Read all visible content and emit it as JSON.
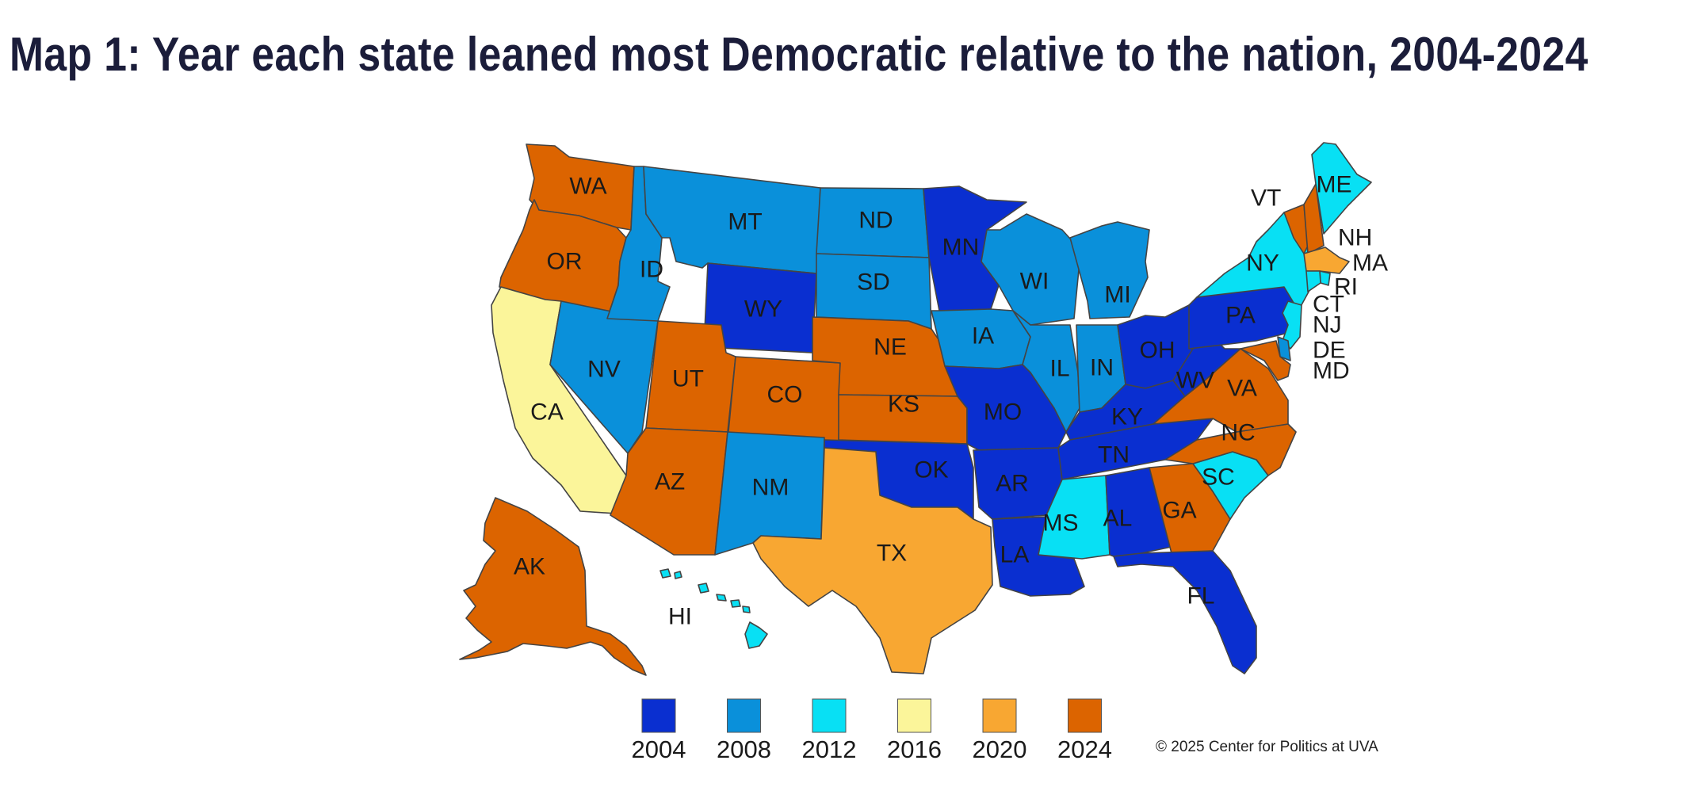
{
  "title": "Map 1: Year each state leaned most Democratic relative to the nation, 2004-2024",
  "credit": "© 2025 Center for Politics at UVA",
  "legend": [
    {
      "year": "2004",
      "color": "#0a2fd0"
    },
    {
      "year": "2008",
      "color": "#0a90da"
    },
    {
      "year": "2012",
      "color": "#08e0f4"
    },
    {
      "year": "2016",
      "color": "#fbf59a"
    },
    {
      "year": "2020",
      "color": "#f8a732"
    },
    {
      "year": "2024",
      "color": "#dc6400"
    }
  ],
  "states": [
    {
      "abbr": "WA",
      "year": "2024"
    },
    {
      "abbr": "OR",
      "year": "2024"
    },
    {
      "abbr": "CA",
      "year": "2016"
    },
    {
      "abbr": "NV",
      "year": "2008"
    },
    {
      "abbr": "ID",
      "year": "2008"
    },
    {
      "abbr": "MT",
      "year": "2008"
    },
    {
      "abbr": "WY",
      "year": "2004"
    },
    {
      "abbr": "UT",
      "year": "2024"
    },
    {
      "abbr": "AZ",
      "year": "2024"
    },
    {
      "abbr": "CO",
      "year": "2024"
    },
    {
      "abbr": "NM",
      "year": "2008"
    },
    {
      "abbr": "ND",
      "year": "2008"
    },
    {
      "abbr": "SD",
      "year": "2008"
    },
    {
      "abbr": "NE",
      "year": "2024"
    },
    {
      "abbr": "KS",
      "year": "2024"
    },
    {
      "abbr": "OK",
      "year": "2004"
    },
    {
      "abbr": "TX",
      "year": "2020"
    },
    {
      "abbr": "MN",
      "year": "2004"
    },
    {
      "abbr": "IA",
      "year": "2008"
    },
    {
      "abbr": "MO",
      "year": "2004"
    },
    {
      "abbr": "AR",
      "year": "2004"
    },
    {
      "abbr": "LA",
      "year": "2004"
    },
    {
      "abbr": "WI",
      "year": "2008"
    },
    {
      "abbr": "IL",
      "year": "2008"
    },
    {
      "abbr": "MI",
      "year": "2008"
    },
    {
      "abbr": "IN",
      "year": "2008"
    },
    {
      "abbr": "OH",
      "year": "2004"
    },
    {
      "abbr": "KY",
      "year": "2004"
    },
    {
      "abbr": "TN",
      "year": "2004"
    },
    {
      "abbr": "MS",
      "year": "2012"
    },
    {
      "abbr": "AL",
      "year": "2004"
    },
    {
      "abbr": "GA",
      "year": "2024"
    },
    {
      "abbr": "FL",
      "year": "2004"
    },
    {
      "abbr": "SC",
      "year": "2012"
    },
    {
      "abbr": "NC",
      "year": "2024"
    },
    {
      "abbr": "VA",
      "year": "2024"
    },
    {
      "abbr": "WV",
      "year": "2004"
    },
    {
      "abbr": "PA",
      "year": "2004"
    },
    {
      "abbr": "NY",
      "year": "2012"
    },
    {
      "abbr": "VT",
      "year": "2024"
    },
    {
      "abbr": "NH",
      "year": "2024"
    },
    {
      "abbr": "ME",
      "year": "2012"
    },
    {
      "abbr": "MA",
      "year": "2020"
    },
    {
      "abbr": "RI",
      "year": "2012"
    },
    {
      "abbr": "CT",
      "year": "2012"
    },
    {
      "abbr": "NJ",
      "year": "2012"
    },
    {
      "abbr": "DE",
      "year": "2008"
    },
    {
      "abbr": "MD",
      "year": "2024"
    },
    {
      "abbr": "AK",
      "year": "2024"
    },
    {
      "abbr": "HI",
      "year": "2012"
    }
  ]
}
